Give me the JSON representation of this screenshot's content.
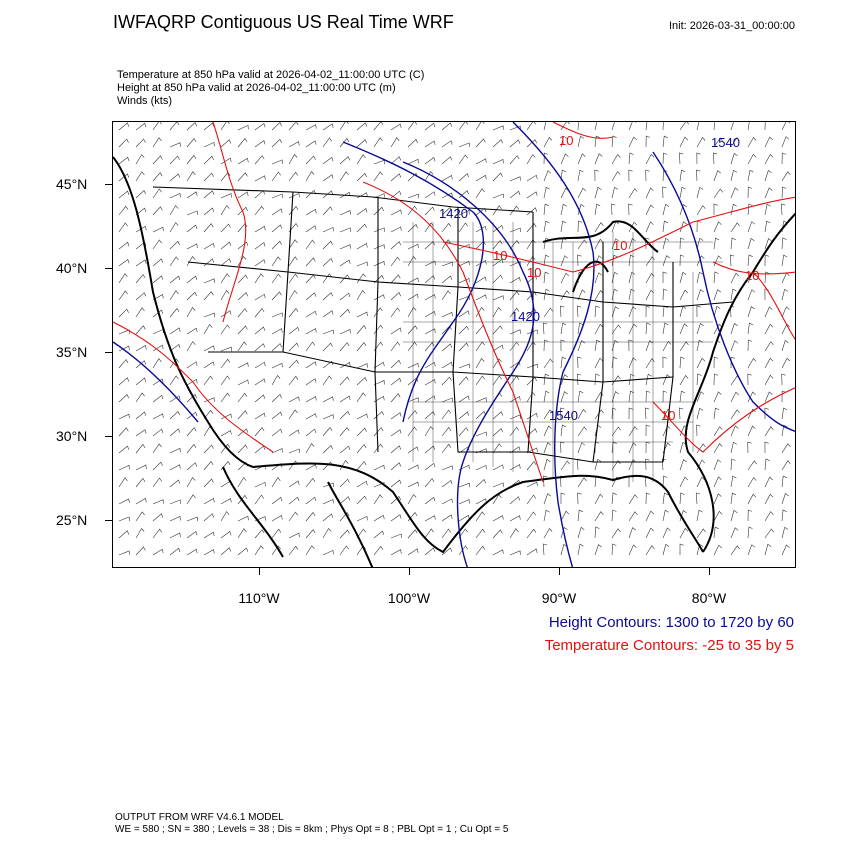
{
  "header": {
    "title": "IWFAQRP Contiguous US Real Time WRF",
    "init": "Init: 2026-03-31_00:00:00"
  },
  "fields": [
    "Temperature at 850 hPa valid at 2026-04-02_11:00:00 UTC   (C)",
    "Height at 850 hPa valid at 2026-04-02_11:00:00 UTC   (m)",
    "Winds   (kts)"
  ],
  "map": {
    "lat_labels": [
      "45°N",
      "40°N",
      "35°N",
      "30°N",
      "25°N"
    ],
    "lon_labels": [
      "110°W",
      "100°W",
      "90°W",
      "80°W"
    ],
    "height_contour_labels": [
      "1420",
      "1420",
      "1540",
      "1540"
    ],
    "temperature_contour_labels": [
      "10",
      "10",
      "10",
      "10",
      "10",
      "10"
    ],
    "colors": {
      "height": "#0a0a96",
      "temperature": "#e41010",
      "boundaries": "#000000"
    }
  },
  "legend": {
    "height": "Height Contours: 1300 to 1720 by 60",
    "temperature": "Temperature Contours: -25 to 35 by 5"
  },
  "footer": {
    "line1": "OUTPUT FROM WRF V4.6.1 MODEL",
    "line2": "WE = 580 ; SN = 380 ; Levels = 38 ; Dis = 8km ; Phys Opt = 8 ; PBL Opt = 1 ; Cu Opt = 5"
  }
}
